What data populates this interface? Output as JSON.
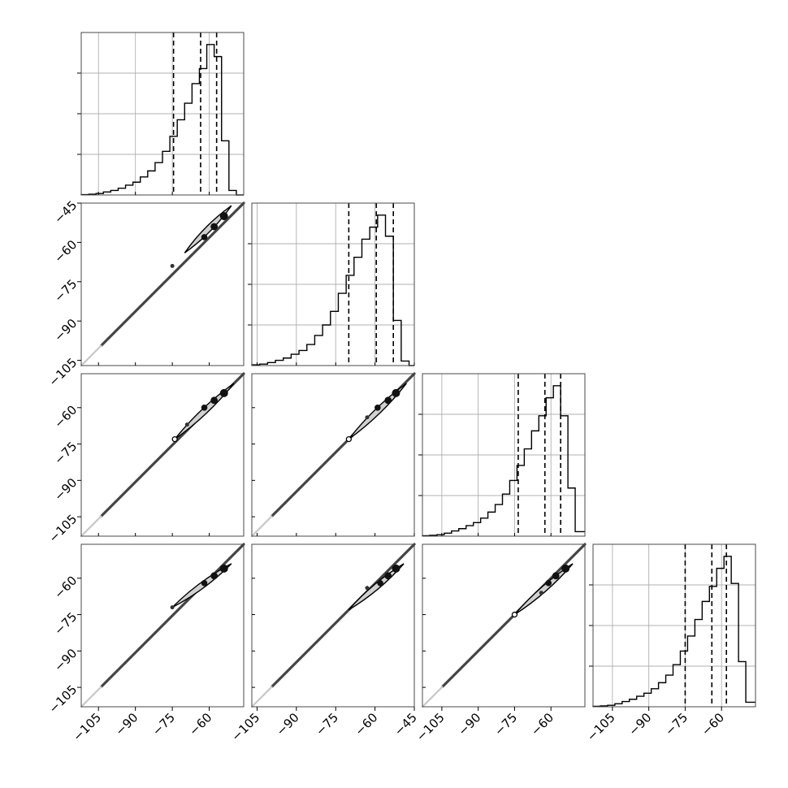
{
  "chart_data": {
    "type": "corner",
    "n_params": 4,
    "grid": true,
    "colors": {
      "hist": "#000000",
      "frame": "#4a4a4a",
      "grid": "#b0b0b0",
      "contour": "#000000"
    },
    "quantile_lines": "dashed",
    "ticks": {
      "diag_x": [
        {
          "labels": [
            "-105",
            "-90",
            "-75",
            "-60"
          ],
          "values": [
            -105,
            -90,
            -75,
            -60
          ]
        },
        {
          "labels": [
            "-105",
            "-90",
            "-75",
            "-60",
            "-45"
          ],
          "values": [
            -105,
            -90,
            -75,
            -60,
            -45
          ]
        },
        {
          "labels": [
            "-105",
            "-90",
            "-75",
            "-60"
          ],
          "values": [
            -105,
            -90,
            -75,
            -60
          ]
        },
        {
          "labels": [
            "-105",
            "-90",
            "-75",
            "-60"
          ],
          "values": [
            -105,
            -90,
            -75,
            -60
          ]
        }
      ],
      "row_y": [
        null,
        {
          "labels": [
            "-45",
            "-60",
            "-75",
            "-90",
            "-105"
          ],
          "values": [
            -45,
            -60,
            -75,
            -90,
            -105
          ]
        },
        {
          "labels": [
            "-60",
            "-75",
            "-90",
            "-105"
          ],
          "values": [
            -60,
            -75,
            -90,
            -105
          ]
        },
        {
          "labels": [
            "-60",
            "-75",
            "-90",
            "-105"
          ],
          "values": [
            -60,
            -75,
            -90,
            -105
          ]
        }
      ]
    },
    "marginals": [
      {
        "range": [
          -112,
          -46
        ],
        "bin_edges": [
          -112,
          -109,
          -106,
          -103,
          -100,
          -97,
          -94,
          -91,
          -88,
          -85,
          -82,
          -79,
          -76,
          -73,
          -70,
          -67,
          -64,
          -61,
          -58,
          -55,
          -52,
          -49,
          -46
        ],
        "counts": [
          0.002,
          0.005,
          0.01,
          0.02,
          0.03,
          0.045,
          0.065,
          0.085,
          0.12,
          0.16,
          0.215,
          0.29,
          0.39,
          0.5,
          0.61,
          0.74,
          0.84,
          1.0,
          0.92,
          0.36,
          0.03,
          0.0
        ],
        "quantiles": [
          -74.5,
          -63.5,
          -57
        ],
        "ylim": [
          0,
          1.08
        ]
      },
      {
        "range": [
          -107,
          -45
        ],
        "bin_edges": [
          -107,
          -104,
          -101,
          -98,
          -95,
          -92,
          -89,
          -86,
          -83,
          -80,
          -77,
          -74,
          -71,
          -68,
          -65,
          -62,
          -59,
          -56,
          -53,
          -50,
          -47,
          -45
        ],
        "counts": [
          0.005,
          0.01,
          0.02,
          0.035,
          0.05,
          0.075,
          0.1,
          0.14,
          0.2,
          0.27,
          0.36,
          0.48,
          0.6,
          0.72,
          0.84,
          0.92,
          1.0,
          0.86,
          0.3,
          0.03,
          0.0
        ],
        "quantiles": [
          -70,
          -59.5,
          -53
        ],
        "ylim": [
          0,
          1.08
        ]
      },
      {
        "range": [
          -113,
          -46
        ],
        "bin_edges": [
          -113,
          -110,
          -107,
          -104,
          -101,
          -98,
          -95,
          -92,
          -89,
          -86,
          -83,
          -80,
          -77,
          -74,
          -71,
          -68,
          -65,
          -62,
          -59,
          -56,
          -53,
          -50,
          -46
        ],
        "counts": [
          0.003,
          0.006,
          0.01,
          0.02,
          0.035,
          0.05,
          0.07,
          0.09,
          0.12,
          0.16,
          0.21,
          0.28,
          0.37,
          0.47,
          0.58,
          0.7,
          0.8,
          0.92,
          1.0,
          0.8,
          0.32,
          0.03
        ],
        "quantiles": [
          -73.5,
          -62.5,
          -56
        ],
        "ylim": [
          0,
          1.08
        ]
      },
      {
        "range": [
          -113,
          -46
        ],
        "bin_edges": [
          -113,
          -110,
          -107,
          -104,
          -101,
          -98,
          -95,
          -92,
          -89,
          -86,
          -83,
          -80,
          -77,
          -74,
          -71,
          -68,
          -65,
          -62,
          -59,
          -56,
          -53,
          -50,
          -46
        ],
        "counts": [
          0.003,
          0.006,
          0.01,
          0.02,
          0.035,
          0.05,
          0.07,
          0.09,
          0.12,
          0.16,
          0.21,
          0.28,
          0.37,
          0.47,
          0.58,
          0.7,
          0.8,
          0.92,
          1.0,
          0.82,
          0.3,
          0.03
        ],
        "quantiles": [
          -75,
          -64,
          -58
        ],
        "ylim": [
          0,
          1.08
        ]
      }
    ],
    "pairs": [
      {
        "row": 1,
        "col": 0,
        "x_range": [
          -112,
          -46
        ],
        "y_range": [
          -107,
          -45
        ],
        "line_from": [
          -112,
          -107
        ],
        "line_to": [
          -46,
          -45
        ],
        "contour_from": [
          -70,
          -64
        ],
        "contour_to": [
          -51,
          -46
        ],
        "blobs": [
          [
            -54,
            -50
          ],
          [
            -58,
            -54
          ],
          [
            -62,
            -58
          ]
        ],
        "dots": [
          [
            -75,
            -69
          ]
        ]
      },
      {
        "row": 2,
        "col": 0,
        "x_range": [
          -112,
          -46
        ],
        "y_range": [
          -113,
          -46
        ],
        "line_from": [
          -112,
          -113
        ],
        "line_to": [
          -46,
          -46
        ],
        "contour_from": [
          -74,
          -73
        ],
        "contour_to": [
          -50,
          -50
        ],
        "blobs": [
          [
            -54,
            -54
          ],
          [
            -58,
            -57
          ],
          [
            -62,
            -60
          ]
        ],
        "dots": [
          [
            -69,
            -67
          ]
        ],
        "open_dots": [
          [
            -74,
            -73
          ]
        ]
      },
      {
        "row": 2,
        "col": 1,
        "x_range": [
          -107,
          -45
        ],
        "y_range": [
          -113,
          -46
        ],
        "line_from": [
          -107,
          -113
        ],
        "line_to": [
          -45,
          -46
        ],
        "contour_from": [
          -70,
          -73
        ],
        "contour_to": [
          -48,
          -50
        ],
        "blobs": [
          [
            -52,
            -54
          ],
          [
            -55,
            -57
          ],
          [
            -59,
            -60
          ]
        ],
        "dots": [
          [
            -63,
            -64
          ]
        ],
        "open_dots": [
          [
            -70,
            -73
          ]
        ]
      },
      {
        "row": 3,
        "col": 0,
        "x_range": [
          -112,
          -46
        ],
        "y_range": [
          -113,
          -46
        ],
        "line_from": [
          -112,
          -113
        ],
        "line_to": [
          -46,
          -46
        ],
        "contour_from": [
          -75,
          -72
        ],
        "contour_to": [
          -51,
          -54
        ],
        "blobs": [
          [
            -54,
            -56
          ],
          [
            -58,
            -59
          ],
          [
            -62,
            -62
          ]
        ],
        "dots": [
          [
            -75,
            -72
          ]
        ]
      },
      {
        "row": 3,
        "col": 1,
        "x_range": [
          -107,
          -45
        ],
        "y_range": [
          -113,
          -46
        ],
        "line_from": [
          -107,
          -113
        ],
        "line_to": [
          -45,
          -46
        ],
        "contour_from": [
          -70,
          -73
        ],
        "contour_to": [
          -49,
          -54
        ],
        "blobs": [
          [
            -52,
            -56
          ],
          [
            -55,
            -59
          ],
          [
            -58,
            -62
          ]
        ],
        "dots": [
          [
            -63,
            -64
          ]
        ]
      },
      {
        "row": 3,
        "col": 2,
        "x_range": [
          -113,
          -46
        ],
        "y_range": [
          -113,
          -46
        ],
        "line_from": [
          -113,
          -113
        ],
        "line_to": [
          -46,
          -46
        ],
        "contour_from": [
          -75,
          -75
        ],
        "contour_to": [
          -51,
          -54
        ],
        "blobs": [
          [
            -54,
            -56
          ],
          [
            -58,
            -59
          ],
          [
            -61,
            -62
          ]
        ],
        "dots": [
          [
            -64,
            -66
          ]
        ],
        "open_dots": [
          [
            -75,
            -75
          ]
        ]
      }
    ]
  }
}
